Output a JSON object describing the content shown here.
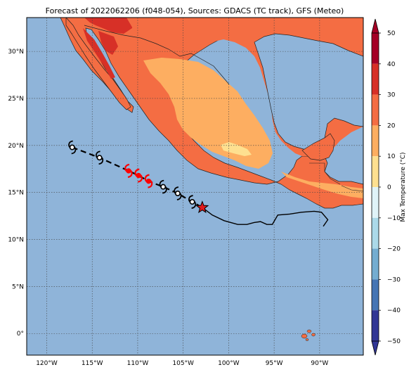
{
  "title": "Forecast of 2022062206 (f048-054), Sources: GDACS (TC track), GFS (Meteo)",
  "map": {
    "lon_ticks": [
      {
        "lon": -120,
        "label": "120°W"
      },
      {
        "lon": -115,
        "label": "115°W"
      },
      {
        "lon": -110,
        "label": "110°W"
      },
      {
        "lon": -105,
        "label": "105°W"
      },
      {
        "lon": -100,
        "label": "100°W"
      },
      {
        "lon": -95,
        "label": "95°W"
      },
      {
        "lon": -90,
        "label": "90°W"
      }
    ],
    "lat_ticks": [
      {
        "lat": 30,
        "label": "30°N"
      },
      {
        "lat": 25,
        "label": "25°N"
      },
      {
        "lat": 20,
        "label": "20°N"
      },
      {
        "lat": 15,
        "label": "15°N"
      },
      {
        "lat": 10,
        "label": "10°N"
      },
      {
        "lat": 5,
        "label": "5°N"
      },
      {
        "lat": 0,
        "label": "0°"
      }
    ],
    "ocean_color": "#8fb4d9",
    "land_colors": {
      "warm": "#f46d43",
      "hot": "#d73027",
      "mild": "#fdae61",
      "cool": "#fee090"
    },
    "track_points": [
      {
        "lon": -117.2,
        "lat": 19.8,
        "color": "#000000"
      },
      {
        "lon": -114.2,
        "lat": 18.7,
        "color": "#000000"
      },
      {
        "lon": -111.0,
        "lat": 17.3,
        "color": "#ff0000"
      },
      {
        "lon": -109.9,
        "lat": 16.8,
        "color": "#ff0000"
      },
      {
        "lon": -108.8,
        "lat": 16.2,
        "color": "#ff0000"
      },
      {
        "lon": -107.2,
        "lat": 15.6,
        "color": "#000000"
      },
      {
        "lon": -105.6,
        "lat": 14.9,
        "color": "#000000"
      },
      {
        "lon": -104.0,
        "lat": 14.0,
        "color": "#000000"
      }
    ],
    "current_position": {
      "lon": -102.9,
      "lat": 13.4
    },
    "past_track": [
      [
        -102.9,
        13.4
      ],
      [
        -101.8,
        12.6
      ],
      [
        -100.5,
        12.0
      ],
      [
        -99.0,
        11.6
      ],
      [
        -98.0,
        11.6
      ],
      [
        -97.2,
        11.8
      ],
      [
        -96.5,
        11.9
      ],
      [
        -95.8,
        11.6
      ],
      [
        -95.2,
        11.6
      ],
      [
        -94.6,
        12.6
      ],
      [
        -93.3,
        12.7
      ],
      [
        -92.0,
        12.9
      ],
      [
        -90.6,
        13.0
      ],
      [
        -89.8,
        12.9
      ],
      [
        -89.1,
        12.1
      ],
      [
        -89.6,
        11.4
      ]
    ]
  },
  "colorbar": {
    "label": "Max Temperature (°C)",
    "ticks": [
      "50",
      "40",
      "30",
      "20",
      "10",
      "0",
      "−10",
      "−20",
      "−30",
      "−40",
      "−50"
    ],
    "colors": [
      "#a50026",
      "#d73027",
      "#f46d43",
      "#fdae61",
      "#fee090",
      "#ffffbf",
      "#e0f3f8",
      "#abd9e9",
      "#74add1",
      "#4575b4",
      "#313695"
    ]
  }
}
